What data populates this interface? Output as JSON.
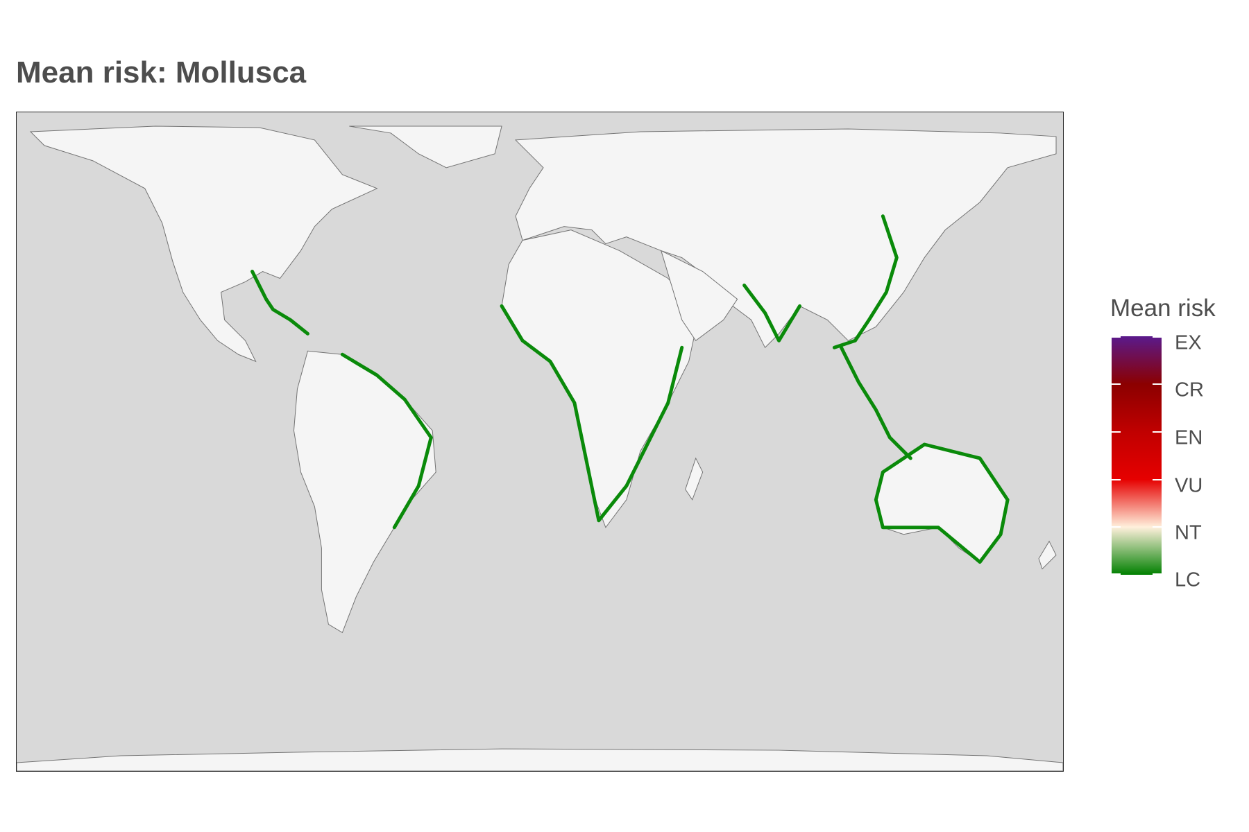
{
  "title": "Mean risk: Mollusca",
  "legend": {
    "title": "Mean risk",
    "labels": [
      "EX",
      "CR",
      "EN",
      "VU",
      "NT",
      "LC"
    ],
    "colors": {
      "EX": "#5a1a8c",
      "CR": "#8b0000",
      "EN": "#c00000",
      "VU": "#e60000",
      "NT": "#fff0dc",
      "LC": "#008000"
    }
  },
  "map": {
    "ocean_color": "#d9d9d9",
    "land_color": "#f5f5f5",
    "coast_color": "#737373",
    "risk_color": "#0a8a0a"
  }
}
